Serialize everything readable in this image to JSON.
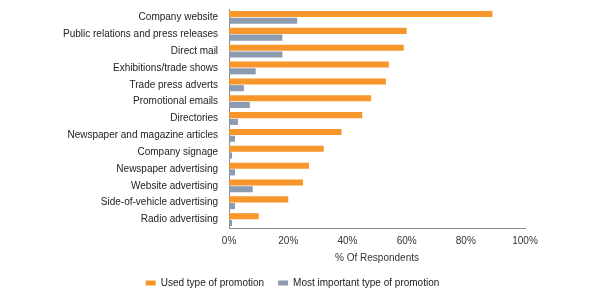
{
  "chart_data": {
    "type": "bar",
    "orientation": "horizontal",
    "categories": [
      "Company website",
      "Public relations and press releases",
      "Direct mail",
      "Exhibitions/trade shows",
      "Trade press adverts",
      "Promotional emails",
      "Directories",
      "Newspaper and magazine articles",
      "Company signage",
      "Newspaper advertising",
      "Website advertising",
      "Side-of-vehicle advertising",
      "Radio advertising"
    ],
    "series": [
      {
        "name": "Used type of promotion",
        "color": "#f7962b",
        "values": [
          89,
          60,
          59,
          54,
          53,
          48,
          45,
          38,
          32,
          27,
          25,
          20,
          10
        ]
      },
      {
        "name": "Most important type of promotion",
        "color": "#8c9bb0",
        "values": [
          23,
          18,
          18,
          9,
          5,
          7,
          3,
          2,
          1,
          2,
          8,
          2,
          1
        ]
      }
    ],
    "x_label": "% Of Respondents",
    "xlim": [
      0,
      100
    ],
    "xticks": [
      {
        "value": 0,
        "label": "0%"
      },
      {
        "value": 20,
        "label": "20%"
      },
      {
        "value": 40,
        "label": "40%"
      },
      {
        "value": 60,
        "label": "60%"
      },
      {
        "value": 80,
        "label": "80%"
      },
      {
        "value": 100,
        "label": "100%"
      }
    ],
    "grid": false,
    "legend": "bottom"
  }
}
